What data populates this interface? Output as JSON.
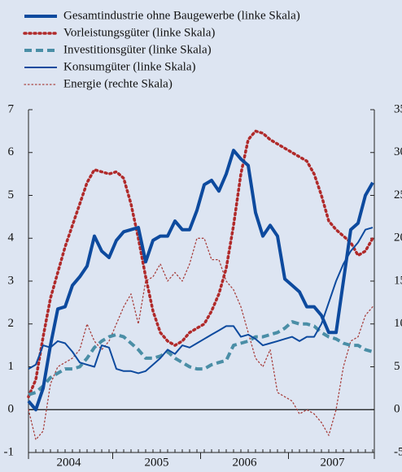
{
  "chart_data": {
    "type": "line",
    "categories": [
      null,
      null,
      null,
      null,
      null,
      "2004",
      null,
      null,
      null,
      null,
      null,
      null,
      null,
      null,
      null,
      null,
      null,
      "2005",
      null,
      null,
      null,
      null,
      null,
      null,
      null,
      null,
      null,
      null,
      null,
      "2006",
      null,
      null,
      null,
      null,
      null,
      null,
      null,
      null,
      null,
      null,
      null,
      "2007",
      null,
      null,
      null,
      null,
      null,
      null
    ],
    "ylim": [
      -1,
      7
    ],
    "yticks": [
      -1,
      0,
      1,
      2,
      3,
      4,
      5,
      6,
      7
    ],
    "y2lim": [
      -5,
      35
    ],
    "y2ticks": [
      -5,
      0,
      5,
      10,
      15,
      20,
      25,
      30,
      35
    ],
    "series": [
      {
        "name": "Gesamtindustrie ohne Baugewerbe (linke Skala)",
        "color": "#0d4a9e",
        "style": "solid",
        "width": 4,
        "values": [
          0.2,
          0,
          0.5,
          1.5,
          2.35,
          2.4,
          2.9,
          3.1,
          3.35,
          4.05,
          3.7,
          3.55,
          3.95,
          4.15,
          4.2,
          4.25,
          3.45,
          3.95,
          4.05,
          4.05,
          4.4,
          4.2,
          4.2,
          4.65,
          5.25,
          5.35,
          5.1,
          5.5,
          6.05,
          5.85,
          5.7,
          4.6,
          4.05,
          4.3,
          4.05,
          3.05,
          2.9,
          2.75,
          2.4,
          2.4,
          2.2,
          1.8,
          1.8,
          3.0,
          4.2,
          4.35,
          5.0,
          5.3
        ]
      },
      {
        "name": "Vorleistungsgüter (linke Skala)",
        "color": "#b02a2a",
        "style": "dotted",
        "width": 3.5,
        "values": [
          0.3,
          0.7,
          1.7,
          2.6,
          3.2,
          3.8,
          4.3,
          4.8,
          5.3,
          5.6,
          5.55,
          5.5,
          5.55,
          5.4,
          4.8,
          4.0,
          3.1,
          2.3,
          1.8,
          1.6,
          1.5,
          1.6,
          1.8,
          1.9,
          2.0,
          2.3,
          2.7,
          3.3,
          4.3,
          5.5,
          6.3,
          6.5,
          6.45,
          6.3,
          6.2,
          6.1,
          6.0,
          5.9,
          5.8,
          5.5,
          5.0,
          4.4,
          4.2,
          4.05,
          3.9,
          3.6,
          3.7,
          4.0
        ]
      },
      {
        "name": "Investitionsgüter (linke Skala)",
        "color": "#4a8ea6",
        "style": "dashed",
        "width": 4,
        "values": [
          0.35,
          0.4,
          0.55,
          0.75,
          0.85,
          0.95,
          0.95,
          1.0,
          1.2,
          1.45,
          1.6,
          1.7,
          1.75,
          1.7,
          1.55,
          1.4,
          1.2,
          1.2,
          1.25,
          1.35,
          1.2,
          1.1,
          1.0,
          0.95,
          0.95,
          1.05,
          1.1,
          1.15,
          1.5,
          1.55,
          1.6,
          1.7,
          1.7,
          1.75,
          1.8,
          1.9,
          2.05,
          2.0,
          2.0,
          1.95,
          1.8,
          1.7,
          1.65,
          1.55,
          1.5,
          1.5,
          1.4,
          1.35
        ]
      },
      {
        "name": "Konsumgüter (linke Skala)",
        "color": "#0d4a9e",
        "style": "solid",
        "width": 2,
        "values": [
          0.95,
          1.05,
          1.5,
          1.45,
          1.6,
          1.55,
          1.35,
          1.1,
          1.05,
          1.0,
          1.5,
          1.45,
          0.95,
          0.9,
          0.9,
          0.85,
          0.9,
          1.05,
          1.2,
          1.4,
          1.3,
          1.5,
          1.45,
          1.55,
          1.65,
          1.75,
          1.85,
          1.95,
          1.95,
          1.7,
          1.75,
          1.65,
          1.5,
          1.55,
          1.6,
          1.65,
          1.7,
          1.6,
          1.7,
          1.7,
          2.0,
          2.5,
          3.0,
          3.4,
          3.7,
          3.9,
          4.2,
          4.25
        ]
      },
      {
        "name": "Energie (rechte Skala)",
        "color": "#a8403e",
        "style": "dotted",
        "width": 1.3,
        "axis": "y2",
        "values": [
          0,
          -3.5,
          -2.5,
          3,
          5,
          5.5,
          6,
          7,
          10,
          8,
          7,
          8,
          10,
          12,
          13.5,
          10,
          15,
          15.5,
          17,
          15,
          16,
          15,
          17,
          20,
          20,
          17.5,
          17.5,
          15,
          14,
          12,
          9,
          6,
          5,
          7,
          2,
          1.5,
          1,
          -0.5,
          0,
          -0.5,
          -1.5,
          -3,
          0,
          5,
          8,
          8.5,
          11,
          12
        ]
      }
    ]
  }
}
